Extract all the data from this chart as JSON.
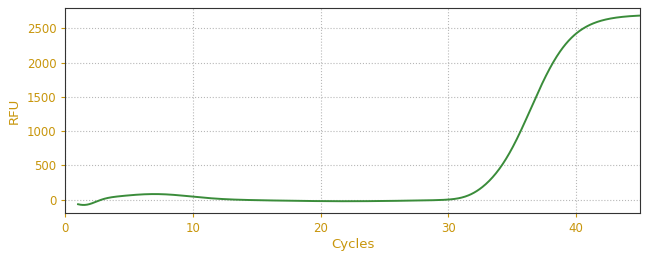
{
  "xlabel": "Cycles",
  "ylabel": "RFU",
  "xlim": [
    0,
    45
  ],
  "ylim": [
    -200,
    2800
  ],
  "xticks": [
    0,
    10,
    20,
    30,
    40
  ],
  "yticks": [
    0,
    500,
    1000,
    1500,
    2000,
    2500
  ],
  "line_color": "#3a8c3a",
  "line_width": 1.4,
  "background_color": "#ffffff",
  "plot_bg_color": "#ffffff",
  "grid_color": "#999999",
  "axis_label_color": "#c8960c",
  "tick_label_color": "#c8960c",
  "sigmoid_L": 2700,
  "sigmoid_k": 0.62,
  "sigmoid_x0": 36.5,
  "x_start": 1,
  "x_end": 45,
  "spine_color": "#333333",
  "spine_linewidth": 0.8
}
